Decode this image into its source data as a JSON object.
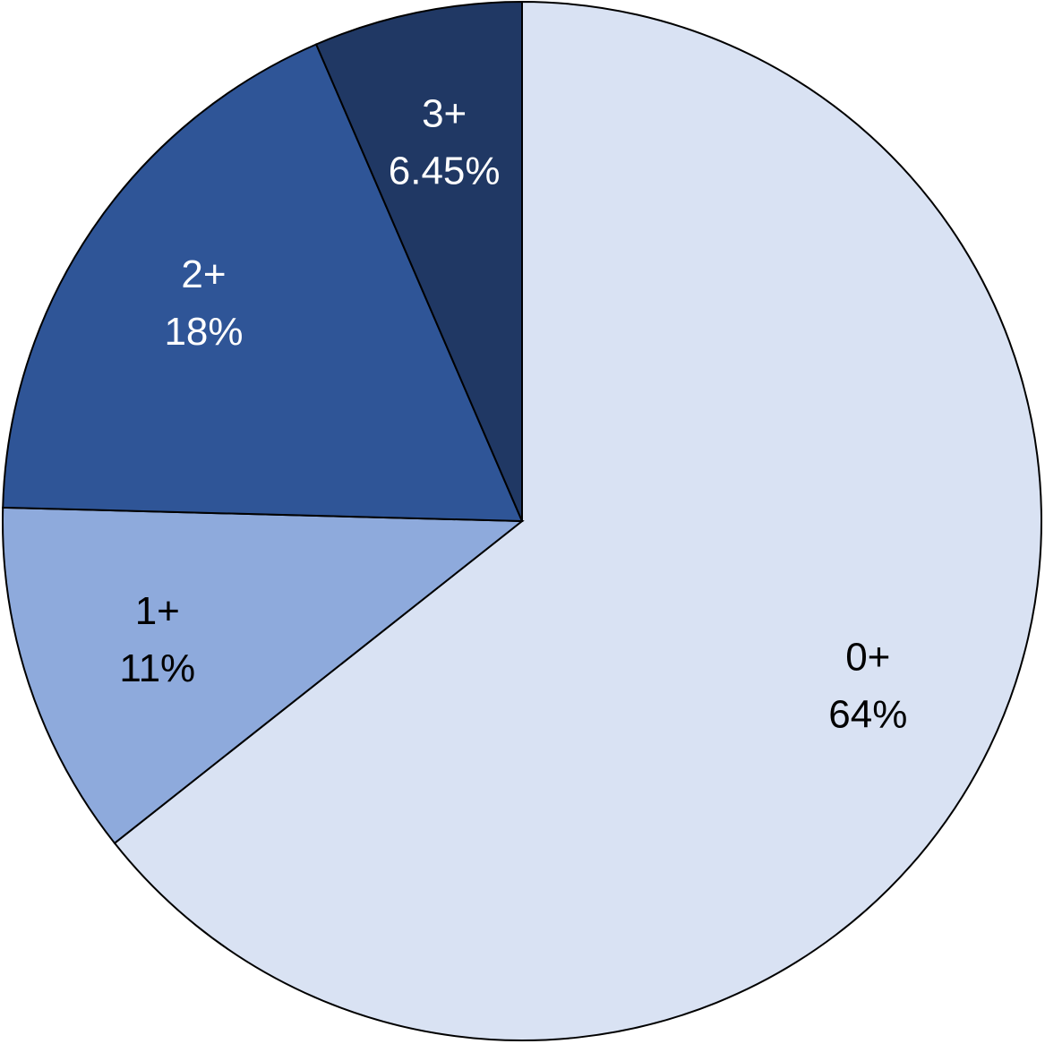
{
  "chart_data": {
    "type": "pie",
    "categories": [
      "0+",
      "1+",
      "2+",
      "3+"
    ],
    "values": [
      64,
      11,
      18,
      6.45
    ],
    "value_labels": [
      "64%",
      "11%",
      "18%",
      "6.45%"
    ],
    "colors": [
      "#d9e2f3",
      "#8eaadc",
      "#2f5597",
      "#203864"
    ],
    "start_angle": "top",
    "direction": "clockwise"
  }
}
